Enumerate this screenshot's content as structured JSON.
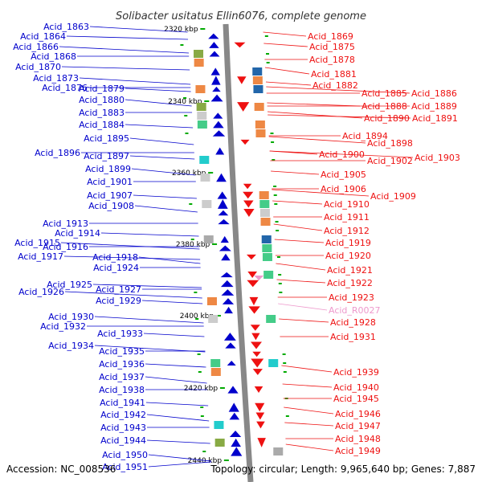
{
  "title": "Solibacter usitatus Ellin6076, complete genome",
  "footer": {
    "accession": "Accession: NC_008536",
    "topology": "Topology: circular; Length: 9,965,640 bp; Genes: 7,887"
  },
  "colors": {
    "left_strand": "#0000cc",
    "right_strand": "#ee1111",
    "rna": "#ee99cc",
    "backbone": "#888888",
    "tick": "#00aa00"
  },
  "kbp_marks": [
    "2320 kbp",
    "2340 kbp",
    "2360 kbp",
    "2380 kbp",
    "2400 kbp",
    "2420 kbp",
    "2440 kbp"
  ],
  "left_labels": [
    "Acid_1863",
    "Acid_1864",
    "Acid_1866",
    "Acid_1868",
    "Acid_1870",
    "Acid_1873",
    "Acid_1876",
    "Acid_1879",
    "Acid_1880",
    "Acid_1883",
    "Acid_1884",
    "Acid_1895",
    "Acid_1896",
    "Acid_1897",
    "Acid_1899",
    "Acid_1901",
    "Acid_1907",
    "Acid_1908",
    "Acid_1913",
    "Acid_1914",
    "Acid_1915",
    "Acid_1916",
    "Acid_1917",
    "Acid_1918",
    "Acid_1924",
    "Acid_1925",
    "Acid_1926",
    "Acid_1927",
    "Acid_1929",
    "Acid_1930",
    "Acid_1932",
    "Acid_1933",
    "Acid_1934",
    "Acid_1935",
    "Acid_1936",
    "Acid_1937",
    "Acid_1938",
    "Acid_1941",
    "Acid_1942",
    "Acid_1943",
    "Acid_1944",
    "Acid_1950",
    "Acid_1951"
  ],
  "right_labels": [
    "Acid_1869",
    "Acid_1875",
    "Acid_1878",
    "Acid_1881",
    "Acid_1882",
    "Acid_1885",
    "Acid_1886",
    "Acid_1888",
    "Acid_1889",
    "Acid_1890",
    "Acid_1891",
    "Acid_1894",
    "Acid_1898",
    "Acid_1900",
    "Acid_1902",
    "Acid_1903",
    "Acid_1905",
    "Acid_1906",
    "Acid_1909",
    "Acid_1910",
    "Acid_1911",
    "Acid_1912",
    "Acid_1919",
    "Acid_1920",
    "Acid_1921",
    "Acid_1922",
    "Acid_1923",
    "Acid_R0027",
    "Acid_1928",
    "Acid_1931",
    "Acid_1939",
    "Acid_1940",
    "Acid_1945",
    "Acid_1946",
    "Acid_1947",
    "Acid_1948",
    "Acid_1949"
  ]
}
